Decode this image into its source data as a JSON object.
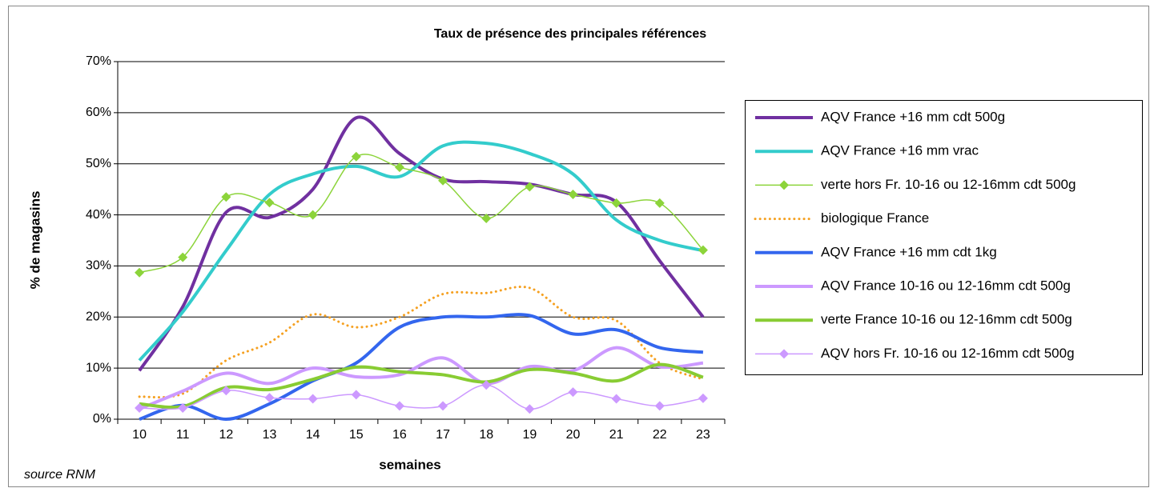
{
  "chart_data": {
    "type": "line",
    "title": "Taux de présence des principales références",
    "ylabel": "% de magasins",
    "xlabel": "semaines",
    "source": "source RNM",
    "categories": [
      "10",
      "11",
      "12",
      "13",
      "14",
      "15",
      "16",
      "17",
      "18",
      "19",
      "20",
      "21",
      "22",
      "23"
    ],
    "ylim": [
      0,
      70
    ],
    "yticks": [
      {
        "value": 0,
        "label": "0%"
      },
      {
        "value": 10,
        "label": "10%"
      },
      {
        "value": 20,
        "label": "20%"
      },
      {
        "value": 30,
        "label": "30%"
      },
      {
        "value": 40,
        "label": "40%"
      },
      {
        "value": 50,
        "label": "50%"
      },
      {
        "value": 60,
        "label": "60%"
      },
      {
        "value": 70,
        "label": "70%"
      }
    ],
    "grid": true,
    "legend": "right",
    "smooth": true,
    "series": [
      {
        "name": "AQV France +16 mm cdt 500g",
        "color": "#7030a0",
        "width": 4,
        "values": [
          9.5,
          22,
          40.5,
          39.5,
          45,
          59,
          52,
          47,
          46.5,
          46,
          44,
          42.5,
          31,
          20
        ]
      },
      {
        "name": "AQV France +16 mm vrac",
        "color": "#33cccc",
        "width": 4,
        "values": [
          11.5,
          21,
          33,
          44,
          48,
          49.5,
          47.5,
          53.5,
          54,
          52,
          48,
          39,
          35,
          33
        ]
      },
      {
        "name": "verte hors Fr. 10-16 ou 12-16mm cdt 500g",
        "color": "#8cd43a",
        "width": 1.5,
        "marker": "diamond",
        "values": [
          28.7,
          31.7,
          43.5,
          42.4,
          40,
          51.4,
          49.3,
          46.7,
          39.3,
          45.5,
          44,
          42.3,
          42.3,
          33.1
        ]
      },
      {
        "name": "biologique France",
        "color": "#f5a020",
        "width": 3,
        "dash": "dot",
        "values": [
          4.4,
          5,
          11.5,
          15,
          20.5,
          18,
          20,
          24.5,
          24.7,
          25.7,
          20,
          19.3,
          11,
          7.8
        ]
      },
      {
        "name": "AQV France +16 mm cdt 1kg",
        "color": "#3366ee",
        "width": 4,
        "values": [
          0,
          2.7,
          0,
          3,
          7.5,
          11,
          18,
          20,
          20,
          20.3,
          16.7,
          17.5,
          14,
          13.1
        ]
      },
      {
        "name": "AQV France 10-16 ou 12-16mm cdt 500g",
        "color": "#cc99ff",
        "width": 4,
        "values": [
          2,
          5.5,
          9,
          7,
          10,
          8.3,
          8.7,
          12,
          7,
          10.3,
          9.5,
          14,
          10.3,
          11
        ]
      },
      {
        "name": "verte France 10-16 ou 12-16mm cdt 500g",
        "color": "#88cc33",
        "width": 4,
        "values": [
          3,
          2.5,
          6.2,
          5.8,
          7.8,
          10.2,
          9.3,
          8.7,
          7.3,
          9.7,
          9,
          7.5,
          10.7,
          8.2
        ]
      },
      {
        "name": "AQV hors Fr. 10-16 ou 12-16mm cdt 500g",
        "color": "#cc99ff",
        "width": 1.5,
        "marker": "diamond",
        "values": [
          2.2,
          2.2,
          5.6,
          4.2,
          4,
          4.8,
          2.6,
          2.6,
          6.7,
          2,
          5.3,
          4,
          2.6,
          4.1
        ]
      }
    ]
  }
}
